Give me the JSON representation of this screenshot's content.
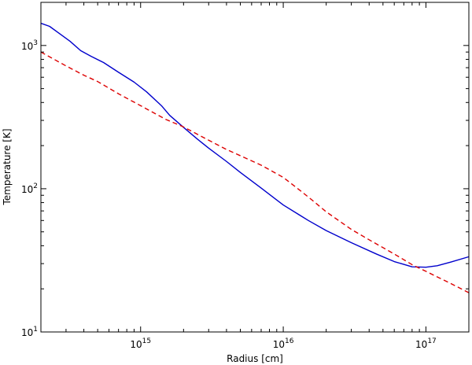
{
  "chart_data": {
    "type": "line",
    "title": "",
    "xlabel": "Radius [cm]",
    "ylabel": "Temperature [K]",
    "x_scale": "log",
    "y_scale": "log",
    "xlim": [
      200000000000000.0,
      2e+17
    ],
    "ylim": [
      10,
      2000
    ],
    "grid": false,
    "x_ticks": [
      {
        "value": 1000000000000000.0,
        "base": "10",
        "exp": "15"
      },
      {
        "value": 1e+16,
        "base": "10",
        "exp": "16"
      },
      {
        "value": 1e+17,
        "base": "10",
        "exp": "17"
      }
    ],
    "y_ticks": [
      {
        "value": 10,
        "base": "10",
        "exp": "1"
      },
      {
        "value": 100,
        "base": "10",
        "exp": "2"
      },
      {
        "value": 1000,
        "base": "10",
        "exp": "3"
      }
    ],
    "series": [
      {
        "color": "#0000cc",
        "style": "solid",
        "points": [
          [
            200000000000000.0,
            1430
          ],
          [
            230000000000000.0,
            1360
          ],
          [
            270000000000000.0,
            1210
          ],
          [
            320000000000000.0,
            1070
          ],
          [
            380000000000000.0,
            920
          ],
          [
            450000000000000.0,
            840
          ],
          [
            550000000000000.0,
            760
          ],
          [
            700000000000000.0,
            650
          ],
          [
            900000000000000.0,
            555
          ],
          [
            1100000000000000.0,
            475
          ],
          [
            1400000000000000.0,
            380
          ],
          [
            1600000000000000.0,
            325
          ],
          [
            2000000000000000.0,
            268
          ],
          [
            2500000000000000.0,
            222
          ],
          [
            3000000000000000.0,
            192
          ],
          [
            4000000000000000.0,
            155
          ],
          [
            5000000000000000.0,
            130
          ],
          [
            7000000000000000.0,
            101
          ],
          [
            1e+16,
            77
          ],
          [
            1.5e+16,
            60
          ],
          [
            2e+16,
            51
          ],
          [
            3e+16,
            42
          ],
          [
            4.5e+16,
            35
          ],
          [
            6e+16,
            31
          ],
          [
            8e+16,
            28.5
          ],
          [
            1e+17,
            28.3
          ],
          [
            1.2e+17,
            29
          ],
          [
            1.5e+17,
            30.8
          ],
          [
            2e+17,
            33.5
          ]
        ]
      },
      {
        "color": "#dd0000",
        "style": "dashed",
        "points": [
          [
            200000000000000.0,
            900
          ],
          [
            300000000000000.0,
            720
          ],
          [
            400000000000000.0,
            620
          ],
          [
            500000000000000.0,
            560
          ],
          [
            700000000000000.0,
            460
          ],
          [
            1000000000000000.0,
            380
          ],
          [
            1500000000000000.0,
            305
          ],
          [
            2000000000000000.0,
            270
          ],
          [
            3000000000000000.0,
            218
          ],
          [
            4000000000000000.0,
            188
          ],
          [
            5000000000000000.0,
            170
          ],
          [
            7000000000000000.0,
            146
          ],
          [
            1e+16,
            120
          ],
          [
            1.3e+16,
            98
          ],
          [
            1.6e+16,
            83
          ],
          [
            2e+16,
            69
          ],
          [
            3e+16,
            52
          ],
          [
            4e+16,
            44
          ],
          [
            6e+16,
            35
          ],
          [
            8e+16,
            29.5
          ],
          [
            1e+17,
            26.5
          ],
          [
            1.4e+17,
            22.5
          ],
          [
            2e+17,
            18.8
          ]
        ]
      }
    ]
  }
}
